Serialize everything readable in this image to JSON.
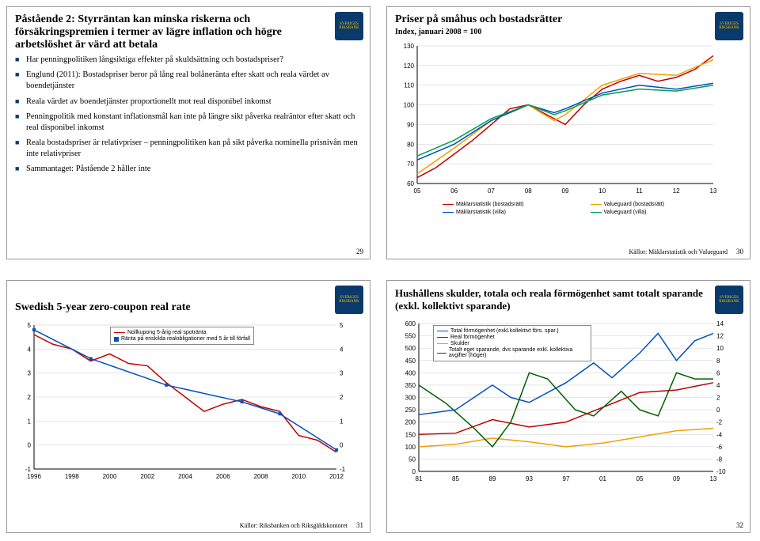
{
  "logo_text": "SVERIGES RIKSBANK",
  "slide29": {
    "title": "Påstående 2: Styrräntan kan minska riskerna och försäkringspremien i termer av lägre inflation och högre arbetslöshet är värd att betala",
    "bullets": [
      "Har penningpolitiken långsiktiga effekter på skuldsättning och bostadspriser?",
      "Englund (2011): Bostadspriser beror på lång real bolåneränta efter skatt och reala värdet av boendetjänster",
      "Reala värdet av boendetjänster proportionellt mot real disponibel inkomst",
      "Penningpolitik med konstant inflationsmål kan inte på längre sikt påverka realräntor efter skatt och real disponibel inkomst",
      "Reala bostadspriser är relativpriser – penningpolitiken kan på sikt påverka nominella prisnivån men inte relativpriser",
      "Sammantaget: Påstående 2 håller inte"
    ],
    "page": "29"
  },
  "slide30": {
    "title": "Priser på småhus och bostadsrätter",
    "subtitle": "Index, januari 2008 = 100",
    "page": "30",
    "source": "Källor: Mäklarstatistik och Valueguard",
    "chart": {
      "type": "line",
      "xlim": [
        2005,
        2013
      ],
      "xticks": [
        "05",
        "06",
        "07",
        "08",
        "09",
        "10",
        "11",
        "12",
        "13"
      ],
      "ylim": [
        60,
        130
      ],
      "ytick_step": 10,
      "background": "#ffffff",
      "grid_color": "#cccccc",
      "label_fontsize": 8,
      "series": [
        {
          "name": "Mäklarstatistik (bostadsrätt)",
          "color": "#c00000",
          "pts": [
            [
              2005.0,
              63
            ],
            [
              2005.5,
              68
            ],
            [
              2006.0,
              75
            ],
            [
              2006.5,
              82
            ],
            [
              2007.0,
              90
            ],
            [
              2007.5,
              98
            ],
            [
              2008.0,
              100
            ],
            [
              2008.5,
              95
            ],
            [
              2009.0,
              90
            ],
            [
              2009.5,
              100
            ],
            [
              2010.0,
              108
            ],
            [
              2010.5,
              112
            ],
            [
              2011.0,
              115
            ],
            [
              2011.5,
              112
            ],
            [
              2012.0,
              114
            ],
            [
              2012.5,
              118
            ],
            [
              2013.0,
              125
            ]
          ]
        },
        {
          "name": "Valueguard (bostadsrätt)",
          "color": "#f0a000",
          "pts": [
            [
              2005.0,
              65
            ],
            [
              2006.0,
              78
            ],
            [
              2007.0,
              92
            ],
            [
              2008.0,
              100
            ],
            [
              2008.7,
              92
            ],
            [
              2009.0,
              95
            ],
            [
              2010.0,
              110
            ],
            [
              2011.0,
              116
            ],
            [
              2012.0,
              115
            ],
            [
              2013.0,
              123
            ]
          ]
        },
        {
          "name": "Mäklarstatistik (villa)",
          "color": "#0050c0",
          "pts": [
            [
              2005.0,
              72
            ],
            [
              2006.0,
              80
            ],
            [
              2007.0,
              92
            ],
            [
              2008.0,
              100
            ],
            [
              2008.7,
              96
            ],
            [
              2009.0,
              98
            ],
            [
              2010.0,
              106
            ],
            [
              2011.0,
              110
            ],
            [
              2012.0,
              108
            ],
            [
              2013.0,
              111
            ]
          ]
        },
        {
          "name": "Valueguard (villa)",
          "color": "#00a050",
          "pts": [
            [
              2005.0,
              74
            ],
            [
              2006.0,
              82
            ],
            [
              2007.0,
              93
            ],
            [
              2008.0,
              100
            ],
            [
              2008.7,
              95
            ],
            [
              2009.0,
              97
            ],
            [
              2010.0,
              105
            ],
            [
              2011.0,
              108
            ],
            [
              2012.0,
              107
            ],
            [
              2013.0,
              110
            ]
          ]
        }
      ]
    }
  },
  "slide31": {
    "title": "Swedish 5-year zero-coupon real rate",
    "page": "31",
    "source": "Källor: Riksbanken och Riksgäldskontoret",
    "chart": {
      "type": "line",
      "xlim": [
        1996,
        2012
      ],
      "xticks": [
        "1996",
        "1998",
        "2000",
        "2002",
        "2004",
        "2006",
        "2008",
        "2010",
        "2012"
      ],
      "ylim": [
        -1,
        5
      ],
      "ytick_step": 1,
      "dual_y": true,
      "background": "#ffffff",
      "grid_color": "#cccccc",
      "label_fontsize": 8,
      "legend_pos": "top-center",
      "series": [
        {
          "name": "Nollkupong 5-årig real spotränta",
          "color": "#c00000",
          "pts": [
            [
              1996,
              4.6
            ],
            [
              1997,
              4.2
            ],
            [
              1998,
              4.0
            ],
            [
              1999,
              3.5
            ],
            [
              2000,
              3.8
            ],
            [
              2001,
              3.4
            ],
            [
              2002,
              3.3
            ],
            [
              2003,
              2.6
            ],
            [
              2004,
              2.0
            ],
            [
              2005,
              1.4
            ],
            [
              2006,
              1.7
            ],
            [
              2007,
              1.9
            ],
            [
              2008,
              1.6
            ],
            [
              2009,
              1.4
            ],
            [
              2010,
              0.4
            ],
            [
              2011,
              0.2
            ],
            [
              2012,
              -0.3
            ]
          ]
        },
        {
          "name": "Ränta på enskilda realobligationer med 5 år till förfall",
          "color": "#0050c0",
          "marker": "square",
          "pts": [
            [
              1996,
              4.8
            ],
            [
              1999,
              3.6
            ],
            [
              2003,
              2.5
            ],
            [
              2007,
              1.8
            ],
            [
              2009,
              1.3
            ],
            [
              2012,
              -0.2
            ]
          ]
        }
      ]
    }
  },
  "slide32": {
    "title": "Hushållens skulder, totala och reala förmögenhet samt totalt sparande (exkl. kollektivt sparande)",
    "page": "32",
    "chart": {
      "type": "line",
      "xlim": [
        1981,
        2013
      ],
      "xticks": [
        "81",
        "85",
        "89",
        "93",
        "97",
        "01",
        "05",
        "09",
        "13"
      ],
      "ylim_left": [
        0,
        600
      ],
      "ytick_left_step": 50,
      "ylim_right": [
        -10,
        14
      ],
      "ytick_right_step": 2,
      "background": "#ffffff",
      "grid_color": "#cccccc",
      "label_fontsize": 8,
      "series": [
        {
          "name": "Total förmögenhet (exkl.kollektivt förs. spar.)",
          "color": "#0050c0",
          "axis": "left",
          "pts": [
            [
              1981,
              230
            ],
            [
              1985,
              250
            ],
            [
              1989,
              350
            ],
            [
              1991,
              300
            ],
            [
              1993,
              280
            ],
            [
              1997,
              360
            ],
            [
              2000,
              440
            ],
            [
              2002,
              380
            ],
            [
              2005,
              480
            ],
            [
              2007,
              560
            ],
            [
              2009,
              450
            ],
            [
              2011,
              530
            ],
            [
              2013,
              560
            ]
          ]
        },
        {
          "name": "Real förmögenhet",
          "color": "#c00000",
          "axis": "left",
          "pts": [
            [
              1981,
              150
            ],
            [
              1985,
              155
            ],
            [
              1989,
              210
            ],
            [
              1993,
              180
            ],
            [
              1997,
              200
            ],
            [
              2001,
              260
            ],
            [
              2005,
              320
            ],
            [
              2009,
              330
            ],
            [
              2013,
              360
            ]
          ]
        },
        {
          "name": "Skulder",
          "color": "#f0a000",
          "axis": "left",
          "pts": [
            [
              1981,
              100
            ],
            [
              1985,
              110
            ],
            [
              1989,
              135
            ],
            [
              1993,
              120
            ],
            [
              1997,
              100
            ],
            [
              2001,
              115
            ],
            [
              2005,
              140
            ],
            [
              2009,
              165
            ],
            [
              2013,
              175
            ]
          ]
        },
        {
          "name": "Totalt eget sparande, dvs sparande exkl. kollektiva avgifter (höger)",
          "color": "#006000",
          "axis": "right",
          "pts": [
            [
              1981,
              4
            ],
            [
              1984,
              1
            ],
            [
              1987,
              -3
            ],
            [
              1989,
              -6
            ],
            [
              1991,
              -2
            ],
            [
              1993,
              6
            ],
            [
              1995,
              5
            ],
            [
              1998,
              0
            ],
            [
              2000,
              -1
            ],
            [
              2003,
              3
            ],
            [
              2005,
              0
            ],
            [
              2007,
              -1
            ],
            [
              2009,
              6
            ],
            [
              2011,
              5
            ],
            [
              2013,
              5
            ]
          ]
        }
      ]
    }
  }
}
